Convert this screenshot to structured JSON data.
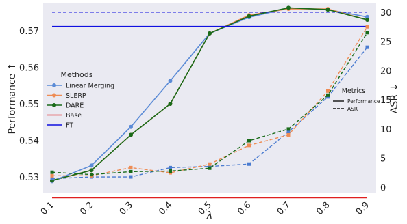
{
  "chart_data": {
    "type": "line",
    "x": [
      0.1,
      0.2,
      0.3,
      0.4,
      0.5,
      0.6,
      0.7,
      0.8,
      0.9
    ],
    "x_tick_labels": [
      "0.1",
      "0.2",
      "0.3",
      "0.4",
      "0.5",
      "0.6",
      "0.7",
      "0.8",
      "0.9"
    ],
    "xlabel": "λ",
    "ylabel_left": "Performance ↑",
    "ylabel_right": "ASR ↓",
    "ylim_left": [
      0.5255,
      0.5775
    ],
    "yticks_left": [
      0.53,
      0.54,
      0.55,
      0.56,
      0.57
    ],
    "yticks_left_labels": [
      "0.53",
      "0.54",
      "0.55",
      "0.56",
      "0.57"
    ],
    "ylim_right": [
      -1,
      31.5
    ],
    "yticks_right": [
      0,
      5,
      10,
      15,
      20,
      25,
      30
    ],
    "yticks_right_labels": [
      "0",
      "5",
      "10",
      "15",
      "20",
      "25",
      "30"
    ],
    "grid": false,
    "background": "#eaeaf2",
    "performance_series": [
      {
        "name": "Linear Merging",
        "color": "#5b8bd6",
        "marker": "circle",
        "values": [
          0.5288,
          0.5331,
          0.5437,
          0.5563,
          0.5693,
          0.5737,
          0.5762,
          0.5758,
          0.5738
        ]
      },
      {
        "name": "SLERP",
        "color": "#ee8c55",
        "marker": "circle",
        "values": [
          0.529,
          0.5318,
          0.5415,
          0.55,
          0.5693,
          0.5743,
          0.576,
          0.576,
          0.573
        ]
      },
      {
        "name": "DARE",
        "color": "#1a6b1a",
        "marker": "circle",
        "values": [
          0.529,
          0.5318,
          0.5415,
          0.55,
          0.5693,
          0.574,
          0.5763,
          0.5758,
          0.573
        ]
      },
      {
        "name": "Base",
        "color": "#e02020",
        "marker": "none",
        "values": [
          0.5243,
          0.5243,
          0.5243,
          0.5243,
          0.5243,
          0.5243,
          0.5243,
          0.5243,
          0.5243
        ]
      },
      {
        "name": "FT",
        "color": "#1010e0",
        "marker": "none",
        "values": [
          0.5712,
          0.5712,
          0.5712,
          0.5712,
          0.5712,
          0.5712,
          0.5712,
          0.5712,
          0.5712
        ]
      }
    ],
    "asr_series": [
      {
        "name": "Linear Merging",
        "color": "#4a7bd0",
        "marker": "square",
        "values": [
          1.5,
          1.8,
          1.8,
          3.4,
          3.6,
          4.0,
          9.5,
          15.5,
          24.0
        ]
      },
      {
        "name": "SLERP",
        "color": "#ee8c55",
        "marker": "square",
        "values": [
          2.0,
          2.0,
          3.4,
          2.5,
          4.0,
          7.2,
          9.0,
          16.5,
          27.5
        ]
      },
      {
        "name": "DARE",
        "color": "#1a6b1a",
        "marker": "square",
        "values": [
          2.6,
          2.2,
          2.7,
          2.8,
          3.3,
          8.0,
          10.0,
          15.8,
          26.5
        ]
      },
      {
        "name": "FT",
        "color": "#1010e0",
        "marker": "none",
        "values": [
          30.0,
          30.0,
          30.0,
          30.0,
          30.0,
          30.0,
          30.0,
          30.0,
          30.0
        ]
      }
    ],
    "legend": {
      "title": "Methods",
      "placement": "center-left",
      "entries": [
        {
          "label": "Linear Merging",
          "color": "#5b8bd6",
          "marker": "circle"
        },
        {
          "label": "SLERP",
          "color": "#ee8c55",
          "marker": "circle"
        },
        {
          "label": "DARE",
          "color": "#1a6b1a",
          "marker": "circle"
        },
        {
          "label": "Base",
          "color": "#e02020",
          "marker": "none"
        },
        {
          "label": "FT",
          "color": "#1010e0",
          "marker": "none"
        }
      ]
    },
    "metrics_legend": {
      "title": "Metrics",
      "placement": "center-right",
      "entries": [
        {
          "label": "Performance",
          "style": "solid"
        },
        {
          "label": "ASR",
          "style": "dashed"
        }
      ]
    }
  }
}
